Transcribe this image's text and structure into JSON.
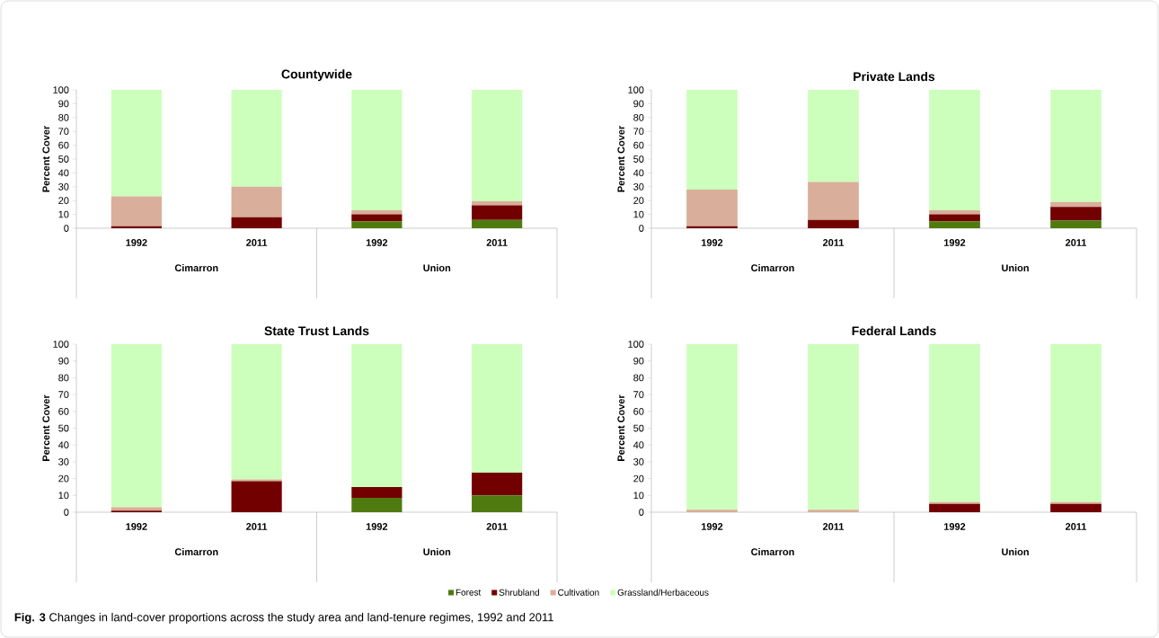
{
  "chart_data": [
    {
      "type": "bar",
      "stacked": true,
      "title": "Countywide",
      "ylabel": "Percent Cover",
      "categories": [
        "1992",
        "2011",
        "1992",
        "2011"
      ],
      "ylim": [
        0,
        100
      ],
      "yticks": [
        0,
        10,
        20,
        30,
        40,
        50,
        60,
        70,
        80,
        90,
        100
      ],
      "annotations": [
        "Cimarron",
        "Union"
      ],
      "series": [
        {
          "color": "#4f7a0f",
          "values": [
            0,
            0,
            5,
            6
          ]
        },
        {
          "color": "#720000",
          "values": [
            1.5,
            8,
            5,
            10.5
          ]
        },
        {
          "color": "#d9ae9a",
          "values": [
            21.5,
            22,
            3,
            3
          ]
        },
        {
          "color": "#ccffbb",
          "values": [
            77,
            70,
            87,
            80.5
          ]
        }
      ]
    },
    {
      "type": "bar",
      "stacked": true,
      "title": "Private Lands",
      "ylabel": "Percent Cover",
      "categories": [
        "1992",
        "2011",
        "1992",
        "2011"
      ],
      "ylim": [
        0,
        100
      ],
      "yticks": [
        0,
        10,
        20,
        30,
        40,
        50,
        60,
        70,
        80,
        90,
        100
      ],
      "annotations": [
        "Cimarron",
        "Union"
      ],
      "series": [
        {
          "color": "#4f7a0f",
          "values": [
            0,
            0,
            5,
            5.5
          ]
        },
        {
          "color": "#720000",
          "values": [
            1.5,
            6,
            5,
            10
          ]
        },
        {
          "color": "#d9ae9a",
          "values": [
            26.5,
            27.5,
            3,
            3.5
          ]
        },
        {
          "color": "#ccffbb",
          "values": [
            72,
            66.5,
            87,
            81
          ]
        }
      ]
    },
    {
      "type": "bar",
      "stacked": true,
      "title": "State Trust Lands",
      "ylabel": "Percent Cover",
      "categories": [
        "1992",
        "2011",
        "1992",
        "2011"
      ],
      "ylim": [
        0,
        100
      ],
      "yticks": [
        0,
        10,
        20,
        30,
        40,
        50,
        60,
        70,
        80,
        90,
        100
      ],
      "annotations": [
        "Cimarron",
        "Union"
      ],
      "series": [
        {
          "color": "#4f7a0f",
          "values": [
            0,
            0,
            8.5,
            10
          ]
        },
        {
          "color": "#720000",
          "values": [
            1,
            18.5,
            6.5,
            13.5
          ]
        },
        {
          "color": "#d9ae9a",
          "values": [
            2,
            1,
            0,
            0
          ]
        },
        {
          "color": "#ccffbb",
          "values": [
            97,
            80.5,
            85,
            76.5
          ]
        }
      ]
    },
    {
      "type": "bar",
      "stacked": true,
      "title": "Federal Lands",
      "ylabel": "Percent Cover",
      "categories": [
        "1992",
        "2011",
        "1992",
        "2011"
      ],
      "ylim": [
        0,
        100
      ],
      "yticks": [
        0,
        10,
        20,
        30,
        40,
        50,
        60,
        70,
        80,
        90,
        100
      ],
      "annotations": [
        "Cimarron",
        "Union",
        "**Fig. 3** Changes in land-cover proportions across the study area and land-tenure regimes, 1992 and 2011"
      ],
      "legend": "bottom",
      "series": [
        {
          "name": "Forest",
          "color": "#4f7a0f",
          "values": [
            0,
            0,
            0,
            0
          ]
        },
        {
          "name": "Shrubland",
          "color": "#720000",
          "values": [
            0,
            0,
            5,
            5
          ]
        },
        {
          "name": "Cultivation",
          "color": "#d9ae9a",
          "values": [
            1.5,
            1.5,
            1,
            1
          ]
        },
        {
          "name": "Grassland/Herbaceous",
          "color": "#ccffbb",
          "values": [
            98.5,
            98.5,
            94,
            94
          ]
        }
      ]
    }
  ]
}
